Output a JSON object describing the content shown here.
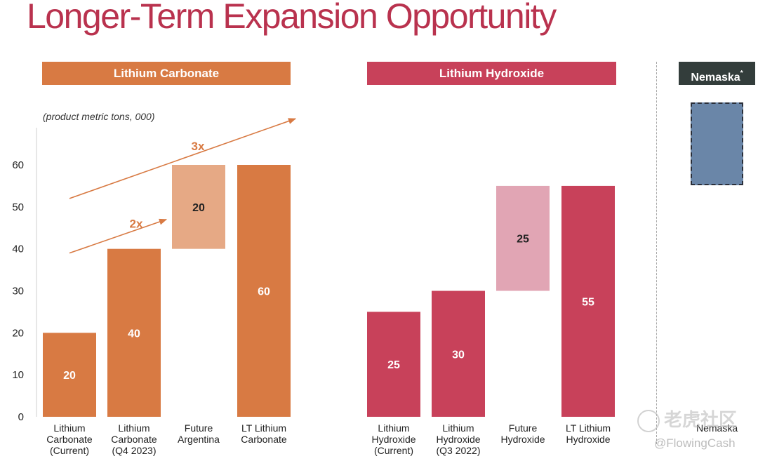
{
  "title": "Longer-Term Expansion Opportunity",
  "headers": {
    "carbonate": "Lithium Carbonate",
    "hydroxide": "Lithium Hydroxide",
    "nemaska": "Nemaska",
    "nemaska_mark": "*"
  },
  "unit_note": "(product metric tons, 000)",
  "colors": {
    "title": "#b9324e",
    "carbonate": "#d87a43",
    "carbonate_future": "#e6a985",
    "hydroxide": "#c8415a",
    "hydroxide_future": "#e1a5b4",
    "nemaska": "#6a86a8",
    "nemaska_header": "#333d3b"
  },
  "chart_data": {
    "type": "bar",
    "ylim": [
      0,
      60
    ],
    "yticks": [
      0,
      10,
      20,
      30,
      40,
      50,
      60
    ],
    "grid": false,
    "bars": [
      {
        "label": [
          "Lithium",
          "Carbonate",
          "(Current)"
        ],
        "base": 0,
        "value": 20,
        "data_label": "20",
        "group": "carbonate",
        "style": "solid"
      },
      {
        "label": [
          "Lithium",
          "Carbonate",
          "(Q4 2023)"
        ],
        "base": 0,
        "value": 40,
        "data_label": "40",
        "group": "carbonate",
        "style": "solid"
      },
      {
        "label": [
          "Future",
          "Argentina"
        ],
        "base": 40,
        "value": 20,
        "data_label": "20",
        "group": "carbonate",
        "style": "future"
      },
      {
        "label": [
          "LT Lithium",
          "Carbonate"
        ],
        "base": 0,
        "value": 60,
        "data_label": "60",
        "group": "carbonate",
        "style": "solid"
      },
      {
        "label": [
          "Lithium",
          "Hydroxide",
          "(Current)"
        ],
        "base": 0,
        "value": 25,
        "data_label": "25",
        "group": "hydroxide",
        "style": "solid"
      },
      {
        "label": [
          "Lithium",
          "Hydroxide",
          "(Q3 2022)"
        ],
        "base": 0,
        "value": 30,
        "data_label": "30",
        "group": "hydroxide",
        "style": "solid"
      },
      {
        "label": [
          "Future",
          "Hydroxide"
        ],
        "base": 30,
        "value": 25,
        "data_label": "25",
        "group": "hydroxide",
        "style": "future"
      },
      {
        "label": [
          "LT Lithium",
          "Hydroxide"
        ],
        "base": 0,
        "value": 55,
        "data_label": "55",
        "group": "hydroxide",
        "style": "solid"
      }
    ],
    "annotations": [
      {
        "text": "3x",
        "from": [
          0,
          52
        ],
        "to": [
          3.5,
          71
        ]
      },
      {
        "text": "2x",
        "from": [
          0,
          39
        ],
        "to": [
          1.5,
          47
        ]
      }
    ]
  },
  "nemaska_label": "Nemaska",
  "watermark": {
    "text": "老虎社区",
    "handle": "@FlowingCash"
  }
}
